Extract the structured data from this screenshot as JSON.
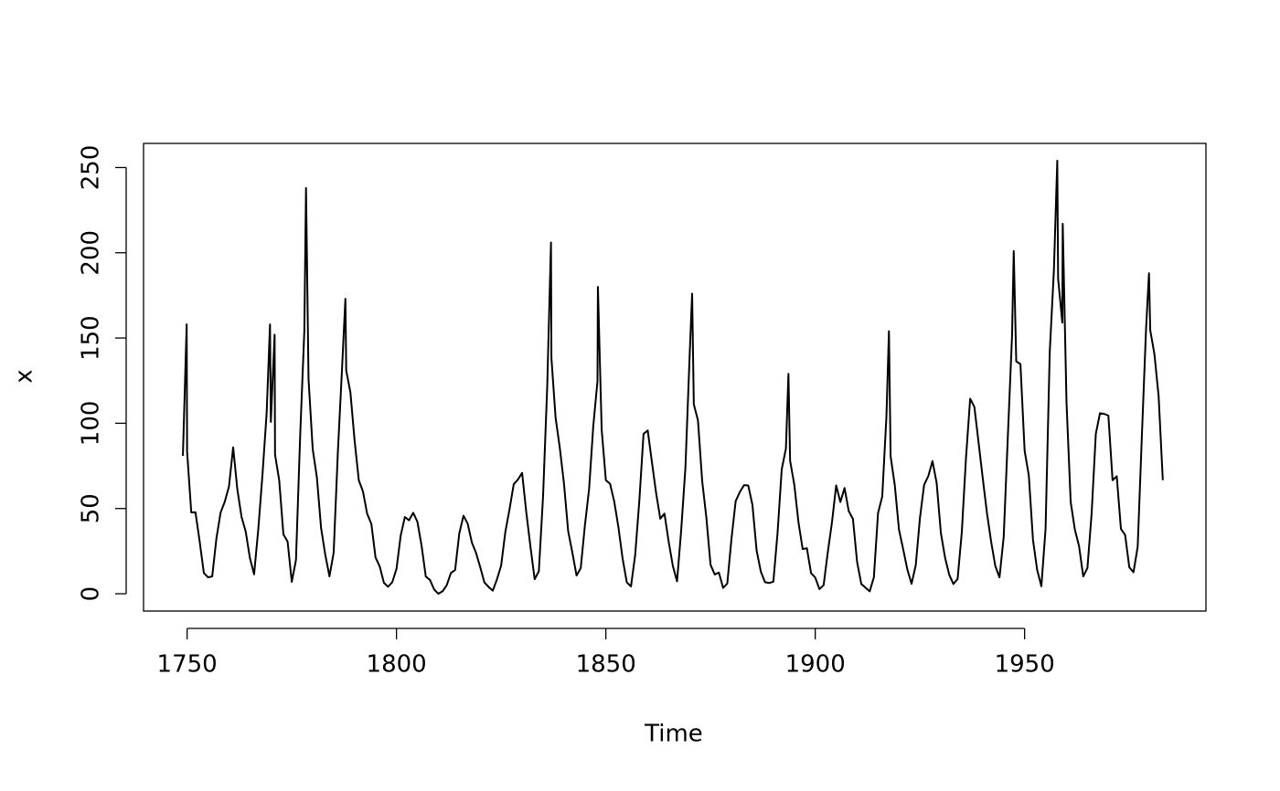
{
  "chart_data": {
    "type": "line",
    "xlabel": "Time",
    "ylabel": "x",
    "x": [
      1749,
      1749.9,
      1750,
      1751,
      1752,
      1753,
      1754,
      1755,
      1756,
      1757,
      1758,
      1759,
      1760,
      1761,
      1762,
      1763,
      1764,
      1765,
      1766,
      1767,
      1768,
      1769,
      1769.8,
      1770,
      1770.9,
      1771,
      1772,
      1773,
      1774,
      1775,
      1776,
      1777,
      1778,
      1778.4,
      1779,
      1780,
      1781,
      1782,
      1783,
      1784,
      1785,
      1786,
      1787,
      1787.8,
      1788,
      1789,
      1790,
      1791,
      1792,
      1793,
      1794,
      1795,
      1796,
      1797,
      1798,
      1799,
      1800,
      1801,
      1802,
      1803,
      1804,
      1805,
      1806,
      1807,
      1808,
      1809,
      1810,
      1811,
      1812,
      1813,
      1814,
      1815,
      1816,
      1817,
      1818,
      1819,
      1820,
      1821,
      1822,
      1823,
      1824,
      1825,
      1826,
      1827,
      1828,
      1829,
      1830,
      1831,
      1832,
      1833,
      1834,
      1835,
      1836,
      1836.9,
      1837,
      1838,
      1839,
      1840,
      1841,
      1842,
      1843,
      1844,
      1845,
      1846,
      1847,
      1848,
      1848.1,
      1849,
      1850,
      1851,
      1852,
      1853,
      1854,
      1855,
      1856,
      1857,
      1858,
      1859,
      1860,
      1861,
      1862,
      1863,
      1864,
      1865,
      1866,
      1867,
      1868,
      1869,
      1870,
      1870.6,
      1871,
      1872,
      1873,
      1874,
      1875,
      1876,
      1877,
      1878,
      1879,
      1880,
      1881,
      1882,
      1883,
      1884,
      1885,
      1886,
      1887,
      1888,
      1889,
      1890,
      1891,
      1892,
      1893,
      1893.6,
      1894,
      1895,
      1896,
      1897,
      1898,
      1899,
      1900,
      1901,
      1902,
      1903,
      1904,
      1905,
      1906,
      1907,
      1908,
      1909,
      1910,
      1911,
      1912,
      1913,
      1914,
      1915,
      1916,
      1917,
      1917.6,
      1918,
      1919,
      1920,
      1921,
      1922,
      1923,
      1924,
      1925,
      1926,
      1927,
      1928,
      1929,
      1930,
      1931,
      1932,
      1933,
      1934,
      1935,
      1936,
      1937,
      1938,
      1939,
      1940,
      1941,
      1942,
      1943,
      1944,
      1945,
      1946,
      1947,
      1947.4,
      1948,
      1949,
      1950,
      1951,
      1952,
      1953,
      1954,
      1955,
      1956,
      1957,
      1957.8,
      1958,
      1959,
      1959.1,
      1960,
      1961,
      1962,
      1963,
      1964,
      1965,
      1966,
      1967,
      1968,
      1969,
      1970,
      1971,
      1972,
      1973,
      1974,
      1975,
      1976,
      1977,
      1978,
      1979,
      1979.7,
      1980,
      1981,
      1982,
      1983
    ],
    "values": [
      80.9,
      158,
      83.4,
      47.7,
      47.8,
      30.7,
      12.2,
      9.6,
      10.2,
      32.4,
      47.6,
      54.0,
      62.9,
      85.9,
      61.2,
      45.1,
      36.4,
      20.9,
      11.4,
      37.8,
      69.8,
      106.1,
      158,
      100.8,
      152,
      81.6,
      66.5,
      34.8,
      30.6,
      7.0,
      19.8,
      92.5,
      154.4,
      238,
      125.9,
      84.8,
      68.1,
      38.5,
      22.8,
      10.2,
      24.1,
      82.9,
      132.0,
      173,
      130.9,
      118.1,
      89.9,
      66.6,
      60.0,
      46.9,
      41.0,
      21.3,
      16.0,
      6.4,
      4.1,
      6.8,
      14.5,
      34.0,
      45.0,
      43.1,
      47.5,
      42.2,
      28.1,
      10.1,
      8.1,
      2.5,
      0.0,
      1.4,
      5.0,
      12.2,
      13.9,
      35.4,
      45.8,
      41.1,
      30.1,
      23.9,
      15.6,
      6.6,
      4.0,
      1.8,
      8.5,
      16.6,
      36.3,
      49.6,
      64.2,
      67.0,
      70.9,
      47.8,
      27.5,
      8.5,
      13.2,
      56.9,
      121.5,
      206,
      138.3,
      103.2,
      85.7,
      64.6,
      36.7,
      24.2,
      10.7,
      15.0,
      40.1,
      61.5,
      98.5,
      124.7,
      180,
      96.3,
      66.6,
      64.5,
      54.1,
      39.0,
      20.6,
      6.7,
      4.3,
      22.7,
      54.8,
      93.8,
      95.8,
      77.2,
      59.1,
      44.0,
      47.0,
      30.5,
      16.3,
      7.3,
      37.6,
      74.0,
      139.0,
      176,
      111.2,
      101.6,
      66.2,
      44.7,
      17.0,
      11.3,
      12.4,
      3.4,
      6.0,
      32.3,
      54.3,
      59.7,
      63.7,
      63.5,
      52.2,
      25.4,
      13.1,
      6.8,
      6.3,
      7.1,
      35.6,
      73.0,
      85.1,
      129,
      78.0,
      64.0,
      41.8,
      26.2,
      26.7,
      12.1,
      9.5,
      2.7,
      5.0,
      24.4,
      42.0,
      63.5,
      53.8,
      62.0,
      48.5,
      43.9,
      18.6,
      5.7,
      3.6,
      1.4,
      9.6,
      47.4,
      57.1,
      103.9,
      154,
      80.6,
      63.6,
      37.6,
      26.1,
      14.2,
      5.8,
      16.7,
      44.3,
      63.9,
      69.0,
      77.8,
      64.9,
      35.7,
      21.2,
      11.1,
      5.7,
      8.7,
      36.1,
      79.7,
      114.4,
      109.6,
      88.8,
      67.8,
      47.5,
      30.6,
      16.3,
      9.6,
      33.2,
      92.6,
      151.6,
      201,
      136.3,
      134.7,
      83.9,
      69.4,
      31.5,
      13.9,
      4.4,
      38.0,
      141.7,
      190.2,
      254,
      184.8,
      159.0,
      217,
      112.3,
      53.9,
      37.6,
      27.9,
      10.2,
      15.1,
      47.0,
      93.8,
      105.9,
      105.5,
      104.5,
      66.6,
      68.9,
      38.0,
      34.5,
      15.5,
      12.6,
      27.5,
      92.5,
      155.4,
      188,
      154.6,
      140.5,
      115.9,
      66.6
    ],
    "color": "#000000",
    "xlim": [
      1739.6,
      1993.3
    ],
    "ylim": [
      -10.16,
      264.16
    ],
    "xticks": [
      1750,
      1800,
      1850,
      1900,
      1950
    ],
    "yticks": [
      0,
      50,
      100,
      150,
      200,
      250
    ]
  }
}
